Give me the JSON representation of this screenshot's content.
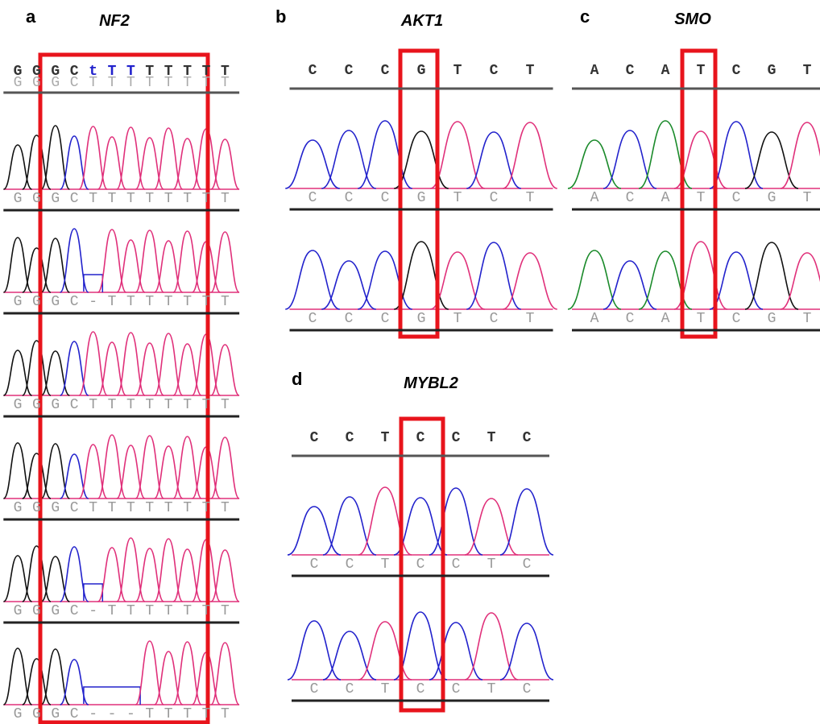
{
  "panels": [
    {
      "label": "a",
      "title": "NF2",
      "header": [
        "G",
        "G",
        "G",
        "C",
        "t",
        "T",
        "T",
        "T",
        "T",
        "T",
        "T",
        "T"
      ],
      "header2": [
        "G",
        "G",
        "G",
        "C",
        "T",
        "T",
        "T",
        "T",
        "T",
        "T",
        "T",
        "T"
      ],
      "rows": [
        [
          "G",
          "G",
          "G",
          "C",
          "T",
          "T",
          "T",
          "T",
          "T",
          "T",
          "T",
          "T"
        ],
        [
          "G",
          "G",
          "G",
          "C",
          "-",
          "T",
          "T",
          "T",
          "T",
          "T",
          "T",
          "T"
        ],
        [
          "G",
          "G",
          "G",
          "C",
          "T",
          "T",
          "T",
          "T",
          "T",
          "T",
          "T",
          "T"
        ],
        [
          "G",
          "G",
          "G",
          "C",
          "T",
          "T",
          "T",
          "T",
          "T",
          "T",
          "T",
          "T"
        ],
        [
          "G",
          "G",
          "G",
          "C",
          "-",
          "T",
          "T",
          "T",
          "T",
          "T",
          "T",
          "T"
        ],
        [
          "G",
          "G",
          "G",
          "C",
          "-",
          "-",
          "-",
          "T",
          "T",
          "T",
          "T",
          "T"
        ]
      ]
    },
    {
      "label": "b",
      "title": "AKT1",
      "header": [
        "C",
        "C",
        "C",
        "G",
        "T",
        "C",
        "T"
      ],
      "rows": [
        [
          "C",
          "C",
          "C",
          "G",
          "T",
          "C",
          "T"
        ],
        [
          "C",
          "C",
          "C",
          "G",
          "T",
          "C",
          "T"
        ]
      ]
    },
    {
      "label": "c",
      "title": "SMO",
      "header": [
        "A",
        "C",
        "A",
        "T",
        "C",
        "G",
        "T"
      ],
      "rows": [
        [
          "A",
          "C",
          "A",
          "T",
          "C",
          "G",
          "T"
        ],
        [
          "A",
          "C",
          "A",
          "T",
          "C",
          "G",
          "T"
        ]
      ]
    },
    {
      "label": "d",
      "title": "MYBL2",
      "header": [
        "C",
        "C",
        "T",
        "C",
        "C",
        "T",
        "C"
      ],
      "rows": [
        [
          "C",
          "C",
          "T",
          "C",
          "C",
          "T",
          "C"
        ],
        [
          "C",
          "C",
          "T",
          "C",
          "C",
          "T",
          "C"
        ]
      ]
    }
  ]
}
